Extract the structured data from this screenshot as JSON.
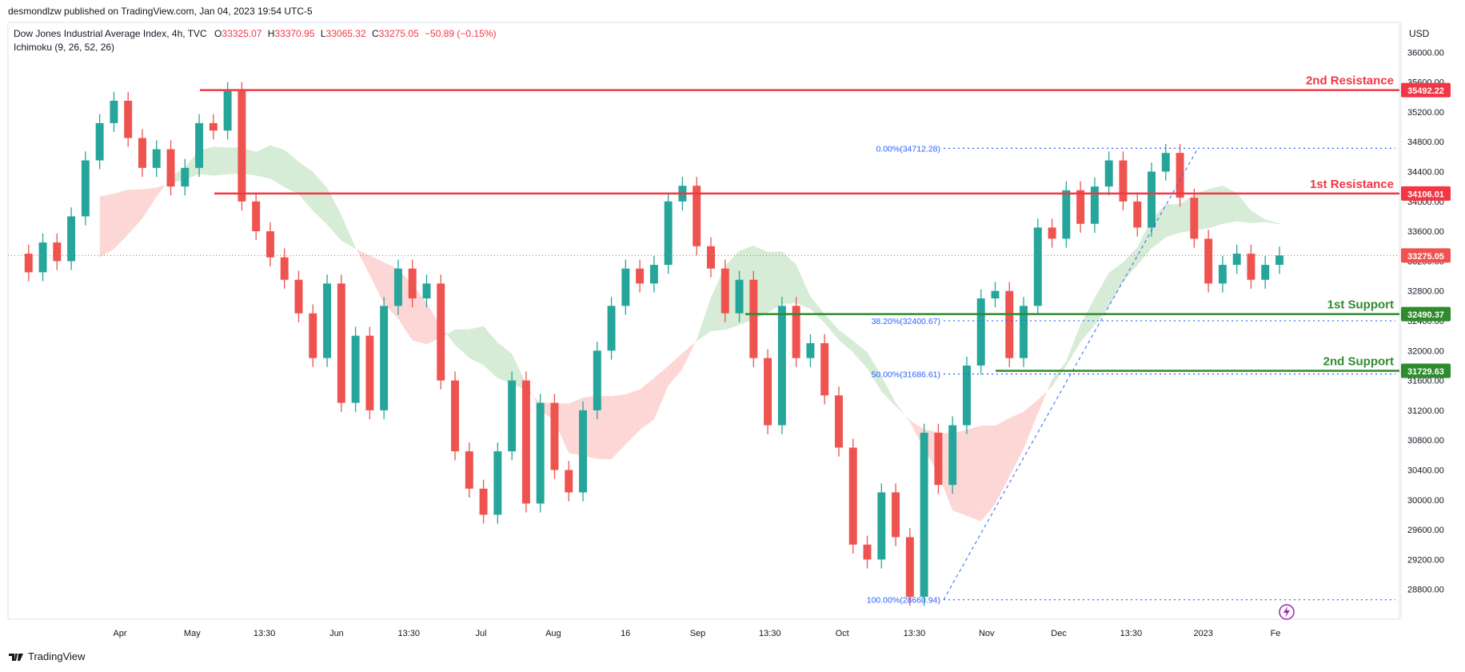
{
  "publisher": "desmondlzw published on TradingView.com, Jan 04, 2023 19:54 UTC-5",
  "symbol": {
    "title": "Dow Jones Industrial Average Index, 4h, TVC",
    "open_label": "O",
    "open": "33325.07",
    "high_label": "H",
    "high": "33370.95",
    "low_label": "L",
    "low": "33065.32",
    "close_label": "C",
    "close": "33275.05",
    "change": "−50.89 (−0.15%)"
  },
  "indicator": "Ichimoku (9, 26, 52, 26)",
  "branding": "TradingView",
  "colors": {
    "resistance": "#f23645",
    "support": "#2e8b2e",
    "bull_candle": "#26a69a",
    "bear_candle": "#ef5350",
    "cloud_bull": "#cfe9cf",
    "cloud_bear": "#fcd0cf",
    "fib": "#2962ff",
    "axis_text": "#131722"
  },
  "chart_data": {
    "type": "candlestick",
    "currency": "USD",
    "ylim": [
      28400,
      36400
    ],
    "y_ticks": [
      "36000.00",
      "35600.00",
      "35200.00",
      "34800.00",
      "34400.00",
      "34000.00",
      "33600.00",
      "33200.00",
      "32800.00",
      "32400.00",
      "32000.00",
      "31600.00",
      "31200.00",
      "30800.00",
      "30400.00",
      "30000.00",
      "29600.00",
      "29200.00",
      "28800.00"
    ],
    "x_ticks": [
      "Apr",
      "May",
      "13:30",
      "Jun",
      "13:30",
      "Jul",
      "Aug",
      "16",
      "Sep",
      "13:30",
      "Oct",
      "13:30",
      "Nov",
      "Dec",
      "13:30",
      "2023",
      "Fe"
    ],
    "levels": [
      {
        "name": "2nd Resistance",
        "value": 35492.22,
        "label": "35492.22",
        "kind": "resistance",
        "from": "Apr"
      },
      {
        "name": "1st Resistance",
        "value": 34106.01,
        "label": "34106.01",
        "kind": "resistance",
        "from": "May"
      },
      {
        "name": "1st Support",
        "value": 32490.37,
        "label": "32490.37",
        "kind": "support",
        "from": "Aug"
      },
      {
        "name": "2nd Support",
        "value": 31729.63,
        "label": "31729.63",
        "kind": "support",
        "from": "Oct"
      }
    ],
    "last_price": {
      "value": 33275.05,
      "label": "33275.05"
    },
    "fibonacci": [
      {
        "label": "0.00%(34712.28)",
        "value": 34712.28
      },
      {
        "label": "38.20%(32400.67)",
        "value": 32400.67
      },
      {
        "label": "50.00%(31686.61)",
        "value": 31686.61
      },
      {
        "label": "100.00%(28660.94)",
        "value": 28660.94
      }
    ],
    "price_path": [
      33300,
      33050,
      33450,
      33200,
      33800,
      34550,
      35050,
      35350,
      34850,
      34450,
      34700,
      34200,
      34450,
      35050,
      34950,
      35480,
      34000,
      33600,
      33250,
      32950,
      32500,
      31900,
      32900,
      31300,
      32200,
      31200,
      32600,
      33100,
      32700,
      32900,
      31600,
      30650,
      30150,
      29800,
      30650,
      31600,
      29950,
      31300,
      30400,
      30100,
      31200,
      32000,
      32600,
      33100,
      32900,
      33150,
      34000,
      34210,
      33400,
      33100,
      32500,
      32950,
      31900,
      31000,
      32600,
      31900,
      32100,
      31400,
      30700,
      29400,
      29200,
      30100,
      29500,
      28700,
      30900,
      30200,
      31000,
      31800,
      32700,
      32800,
      31900,
      32600,
      33650,
      33500,
      34150,
      33700,
      34200,
      34550,
      34000,
      33650,
      34400,
      34650,
      34050,
      33500,
      32900,
      33150,
      33300,
      32950,
      33150,
      33275
    ]
  },
  "event_icon": "lightning-icon"
}
